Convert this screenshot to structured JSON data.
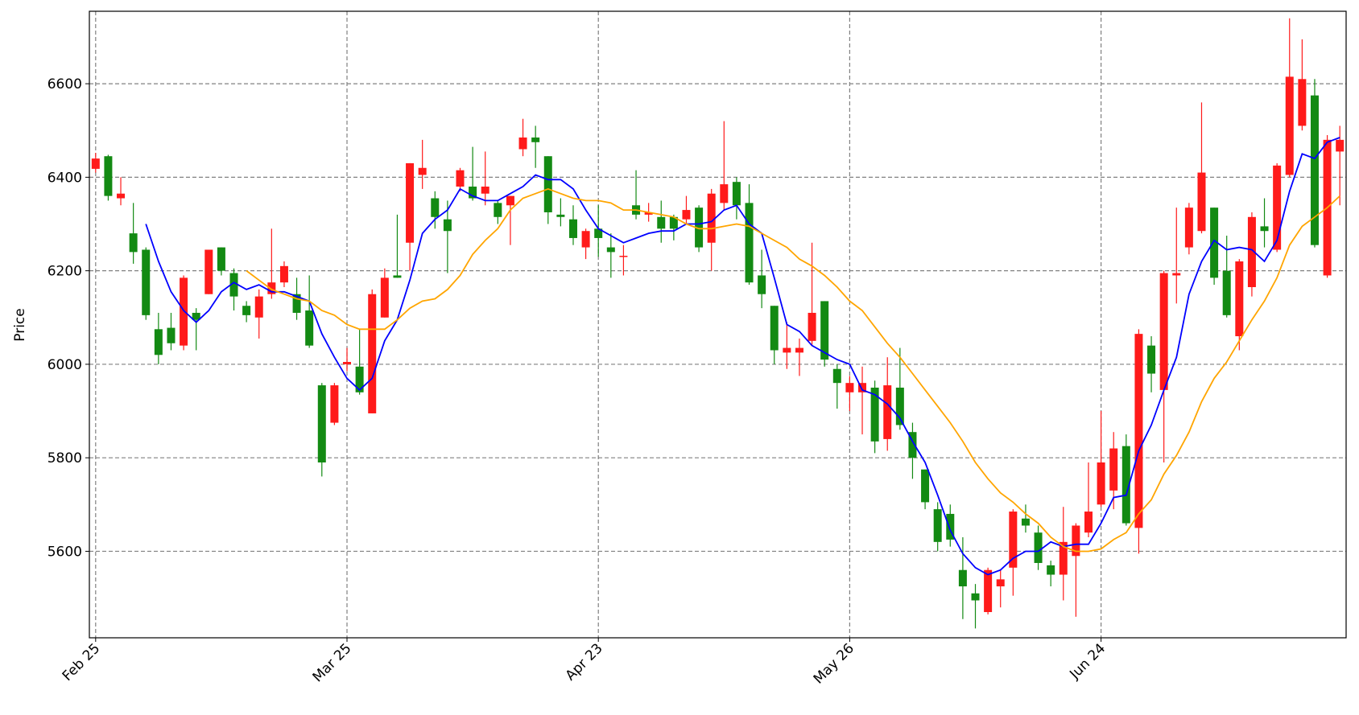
{
  "chart_data": {
    "type": "candlestick",
    "y_label": "Price",
    "categories": [
      "Feb 25",
      null,
      null,
      null,
      null,
      null,
      null,
      null,
      null,
      null,
      null,
      null,
      null,
      null,
      null,
      null,
      null,
      null,
      null,
      null,
      "Mar 25",
      null,
      null,
      null,
      null,
      null,
      null,
      null,
      null,
      null,
      null,
      null,
      null,
      null,
      null,
      null,
      null,
      null,
      null,
      null,
      "Apr 23",
      null,
      null,
      null,
      null,
      null,
      null,
      null,
      null,
      null,
      null,
      null,
      null,
      null,
      null,
      null,
      null,
      null,
      null,
      null,
      "May 26",
      null,
      null,
      null,
      null,
      null,
      null,
      null,
      null,
      null,
      null,
      null,
      null,
      null,
      null,
      null,
      null,
      null,
      null,
      null,
      "Jun 24",
      null,
      null,
      null,
      null,
      null,
      null,
      null,
      null,
      null,
      null,
      null,
      null,
      null,
      null,
      null,
      null,
      null,
      null,
      null
    ],
    "open": [
      6418,
      6445,
      6355,
      6280,
      6245,
      6075,
      6078,
      6040,
      6110,
      6150,
      6250,
      6195,
      6125,
      6100,
      6150,
      6175,
      6150,
      6115,
      5955,
      5875,
      6000,
      5995,
      5895,
      6100,
      6190,
      6260,
      6405,
      6355,
      6310,
      6380,
      6380,
      6365,
      6345,
      6340,
      6460,
      6485,
      6445,
      6320,
      6310,
      6250,
      6290,
      6250,
      6230,
      6340,
      6320,
      6315,
      6315,
      6310,
      6335,
      6260,
      6345,
      6390,
      6345,
      6190,
      6125,
      6025,
      6025,
      6050,
      6135,
      5990,
      5940,
      5940,
      5950,
      5840,
      5950,
      5855,
      5775,
      5690,
      5680,
      5560,
      5510,
      5470,
      5525,
      5565,
      5670,
      5640,
      5570,
      5550,
      5590,
      5640,
      5700,
      5730,
      5825,
      5650,
      6040,
      5945,
      6190,
      6250,
      6285,
      6335,
      6200,
      6060,
      6165,
      6295,
      6245,
      6405,
      6510,
      6575,
      6190,
      6455
    ],
    "high": [
      6452,
      6448,
      6400,
      6345,
      6250,
      6110,
      6110,
      6190,
      6120,
      6245,
      6250,
      6205,
      6135,
      6160,
      6290,
      6220,
      6185,
      6190,
      5960,
      5960,
      6035,
      6075,
      6160,
      6205,
      6320,
      6430,
      6480,
      6370,
      6350,
      6420,
      6465,
      6455,
      6350,
      6360,
      6525,
      6510,
      6445,
      6355,
      6340,
      6290,
      6340,
      6280,
      6255,
      6415,
      6345,
      6350,
      6320,
      6360,
      6340,
      6375,
      6520,
      6400,
      6385,
      6245,
      6125,
      6090,
      6055,
      6260,
      6135,
      6000,
      5975,
      5995,
      5965,
      6015,
      6035,
      5875,
      5775,
      5705,
      5700,
      5630,
      5530,
      5565,
      5560,
      5690,
      5700,
      5655,
      5580,
      5695,
      5660,
      5790,
      5900,
      5855,
      5850,
      6075,
      6060,
      6200,
      6335,
      6345,
      6560,
      6335,
      6275,
      6225,
      6325,
      6355,
      6430,
      6740,
      6695,
      6610,
      6490,
      6510
    ],
    "low": [
      6410,
      6350,
      6340,
      6215,
      6095,
      6000,
      6030,
      6030,
      6030,
      6150,
      6190,
      6115,
      6090,
      6055,
      6140,
      6165,
      6095,
      6035,
      5760,
      5870,
      5985,
      5935,
      5895,
      6100,
      6185,
      6200,
      6375,
      6290,
      6195,
      6370,
      6350,
      6340,
      6300,
      6255,
      6445,
      6420,
      6300,
      6295,
      6255,
      6225,
      6230,
      6185,
      6190,
      6310,
      6305,
      6260,
      6265,
      6300,
      6240,
      6200,
      6330,
      6310,
      6170,
      6120,
      6000,
      5990,
      5975,
      6040,
      5995,
      5905,
      5900,
      5850,
      5810,
      5815,
      5860,
      5755,
      5690,
      5600,
      5610,
      5455,
      5435,
      5465,
      5480,
      5505,
      5640,
      5560,
      5525,
      5495,
      5460,
      5630,
      5695,
      5690,
      5655,
      5595,
      5940,
      5790,
      6130,
      6235,
      6280,
      6170,
      6100,
      6030,
      6145,
      6250,
      6240,
      6400,
      6500,
      6250,
      6185,
      6340
    ],
    "close": [
      6440,
      6360,
      6365,
      6240,
      6105,
      6020,
      6045,
      6185,
      6095,
      6245,
      6200,
      6145,
      6105,
      6145,
      6175,
      6210,
      6110,
      6040,
      5790,
      5955,
      6005,
      5940,
      6150,
      6185,
      6185,
      6430,
      6420,
      6315,
      6285,
      6415,
      6355,
      6380,
      6315,
      6360,
      6485,
      6475,
      6325,
      6315,
      6270,
      6285,
      6270,
      6240,
      6232,
      6320,
      6325,
      6290,
      6290,
      6330,
      6250,
      6365,
      6385,
      6340,
      6175,
      6150,
      6030,
      6035,
      6035,
      6110,
      6010,
      5960,
      5960,
      5960,
      5835,
      5955,
      5870,
      5800,
      5705,
      5620,
      5625,
      5525,
      5495,
      5560,
      5540,
      5685,
      5655,
      5575,
      5550,
      5620,
      5655,
      5685,
      5790,
      5820,
      5660,
      6065,
      5980,
      6195,
      6195,
      6335,
      6410,
      6185,
      6105,
      6220,
      6315,
      6285,
      6425,
      6615,
      6610,
      6255,
      6480,
      6480
    ],
    "up_color": "#ff1a1a",
    "down_color": "#138a13",
    "lines": [
      {
        "color": "#0000ff",
        "values": [
          null,
          null,
          null,
          null,
          6300,
          6220,
          6155,
          6115,
          6090,
          6115,
          6155,
          6175,
          6160,
          6170,
          6155,
          6155,
          6145,
          6135,
          6065,
          6015,
          5970,
          5945,
          5970,
          6050,
          6095,
          6180,
          6280,
          6310,
          6330,
          6375,
          6360,
          6350,
          6350,
          6365,
          6380,
          6405,
          6395,
          6395,
          6375,
          6330,
          6290,
          6275,
          6260,
          6270,
          6280,
          6285,
          6285,
          6300,
          6300,
          6305,
          6330,
          6340,
          6300,
          6280,
          6185,
          6085,
          6070,
          6040,
          6025,
          6010,
          6000,
          5945,
          5935,
          5915,
          5885,
          5835,
          5790,
          5720,
          5645,
          5595,
          5565,
          5550,
          5560,
          5585,
          5600,
          5600,
          5620,
          5610,
          5615,
          5615,
          5660,
          5715,
          5720,
          5815,
          5870,
          5945,
          6015,
          6150,
          6220,
          6265,
          6245,
          6250,
          6245,
          6220,
          6265,
          6370,
          6450,
          6440,
          6475,
          6485
        ]
      },
      {
        "color": "#ffa500",
        "values": [
          null,
          null,
          null,
          null,
          null,
          null,
          null,
          null,
          null,
          null,
          null,
          null,
          6200,
          6180,
          6160,
          6150,
          6140,
          6135,
          6115,
          6105,
          6085,
          6075,
          6075,
          6075,
          6095,
          6120,
          6135,
          6140,
          6160,
          6190,
          6235,
          6265,
          6290,
          6330,
          6355,
          6365,
          6375,
          6365,
          6355,
          6350,
          6350,
          6345,
          6330,
          6330,
          6325,
          6320,
          6315,
          6300,
          6290,
          6290,
          6295,
          6300,
          6295,
          6280,
          6265,
          6250,
          6225,
          6210,
          6190,
          6165,
          6135,
          6115,
          6080,
          6045,
          6015,
          5980,
          5945,
          5910,
          5875,
          5835,
          5790,
          5755,
          5725,
          5705,
          5680,
          5660,
          5630,
          5610,
          5600,
          5600,
          5605,
          5625,
          5640,
          5680,
          5710,
          5765,
          5805,
          5855,
          5920,
          5970,
          6005,
          6050,
          6095,
          6135,
          6185,
          6255,
          6295,
          6315,
          6335,
          6360
        ]
      }
    ],
    "ylim": [
      5415,
      6755
    ],
    "yticks": [
      5600,
      5800,
      6000,
      6200,
      6400,
      6600
    ],
    "grid": true
  }
}
